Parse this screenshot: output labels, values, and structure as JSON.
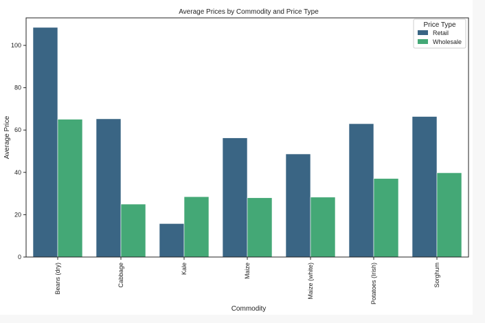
{
  "chart_data": {
    "type": "bar",
    "title": "Average Prices by Commodity and Price Type",
    "xlabel": "Commodity",
    "ylabel": "Average Price",
    "ylim": [
      0,
      113
    ],
    "yticks": [
      0,
      20,
      40,
      60,
      80,
      100
    ],
    "categories": [
      "Beans (dry)",
      "Cabbage",
      "Kale",
      "Maize",
      "Maize (white)",
      "Potatoes (Irish)",
      "Sorghum"
    ],
    "legend_title": "Price Type",
    "legend_position": "top-right",
    "grid": false,
    "series": [
      {
        "name": "Retail",
        "color": "#3a6584",
        "values": [
          108.5,
          65.3,
          15.8,
          56.3,
          48.7,
          63.0,
          66.4
        ]
      },
      {
        "name": "Wholesale",
        "color": "#44a876",
        "values": [
          65.1,
          25.0,
          28.5,
          28.0,
          28.3,
          37.1,
          39.8
        ]
      }
    ]
  }
}
